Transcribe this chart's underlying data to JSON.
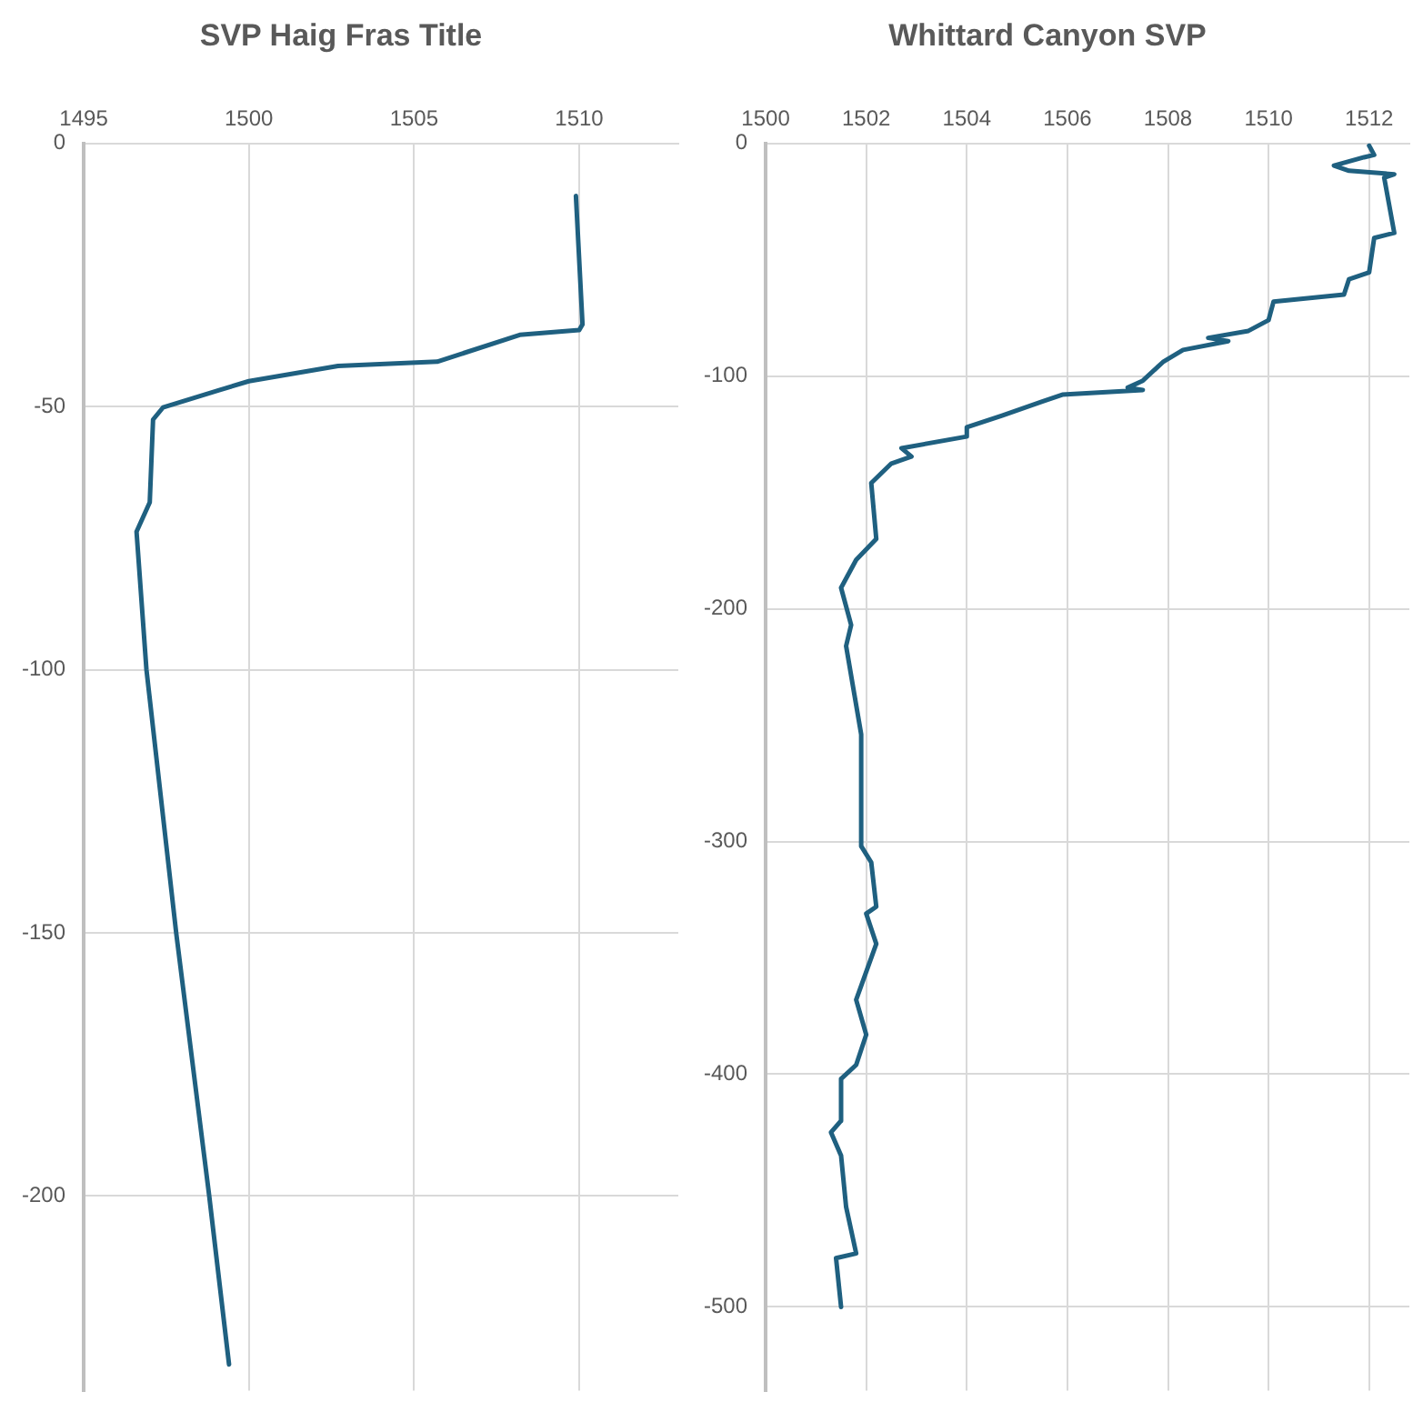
{
  "chart_data": [
    {
      "type": "line",
      "title": "SVP Haig Fras Title",
      "color": "#1f6080",
      "grid": true,
      "xlim": [
        1495,
        1513
      ],
      "ylim": [
        -237,
        0
      ],
      "xticks": [
        1495,
        1500,
        1505,
        1510
      ],
      "yticks": [
        0,
        -50,
        -100,
        -150,
        -200
      ],
      "x": [
        1509.9,
        1510.1,
        1510,
        1508.2,
        1505.7,
        1502.7,
        1500,
        1499.1,
        1497.4,
        1497.1,
        1497,
        1496.6,
        1496.9,
        1497.8,
        1498.8,
        1499.4
      ],
      "values": [
        -10,
        -34.4,
        -35.5,
        -36.4,
        -41.5,
        -42.3,
        -45.2,
        -46.9,
        -50.2,
        -52.5,
        -68.2,
        -73.8,
        -100,
        -150,
        -200,
        -232
      ]
    },
    {
      "type": "line",
      "title": "Whittard Canyon SVP",
      "color": "#1f6080",
      "grid": true,
      "xlim": [
        1500,
        1512.8
      ],
      "ylim": [
        -536,
        0
      ],
      "xticks": [
        1500,
        1502,
        1504,
        1506,
        1508,
        1510,
        1512
      ],
      "yticks": [
        0,
        -100,
        -200,
        -300,
        -400,
        -500
      ],
      "x": [
        1512,
        1512.1,
        1511.9,
        1511.3,
        1511.6,
        1512.5,
        1512.3,
        1512.5,
        1512.1,
        1512,
        1511.6,
        1511.5,
        1510.1,
        1510,
        1509.6,
        1508.8,
        1509.2,
        1508.3,
        1507.9,
        1507.5,
        1507.2,
        1507.5,
        1505.9,
        1505.5,
        1504.7,
        1504,
        1504,
        1502.7,
        1502.9,
        1502.5,
        1502.1,
        1502.2,
        1501.8,
        1501.5,
        1501.7,
        1501.6,
        1501.9,
        1501.9,
        1502.1,
        1502.2,
        1502,
        1502.2,
        1502,
        1501.8,
        1502,
        1501.8,
        1501.5,
        1501.5,
        1501.3,
        1501.5,
        1501.6,
        1501.8,
        1501.4,
        1501.5
      ],
      "values": [
        -1,
        -5,
        -6,
        -9.6,
        -11.8,
        -13.3,
        -14.8,
        -38.5,
        -40.7,
        -55.5,
        -58.4,
        -65,
        -68,
        -76,
        -80.6,
        -83.6,
        -85,
        -88.8,
        -94,
        -102,
        -105,
        -106,
        -108,
        -111,
        -117,
        -122,
        -126,
        -131,
        -134.6,
        -137.6,
        -146,
        -170,
        -179,
        -191,
        -207,
        -216,
        -254,
        -302,
        -309,
        -328,
        -331,
        -344,
        -356,
        -368,
        -383,
        -396,
        -402,
        -420,
        -425,
        -435,
        -457,
        -477,
        -479,
        -500
      ]
    }
  ]
}
